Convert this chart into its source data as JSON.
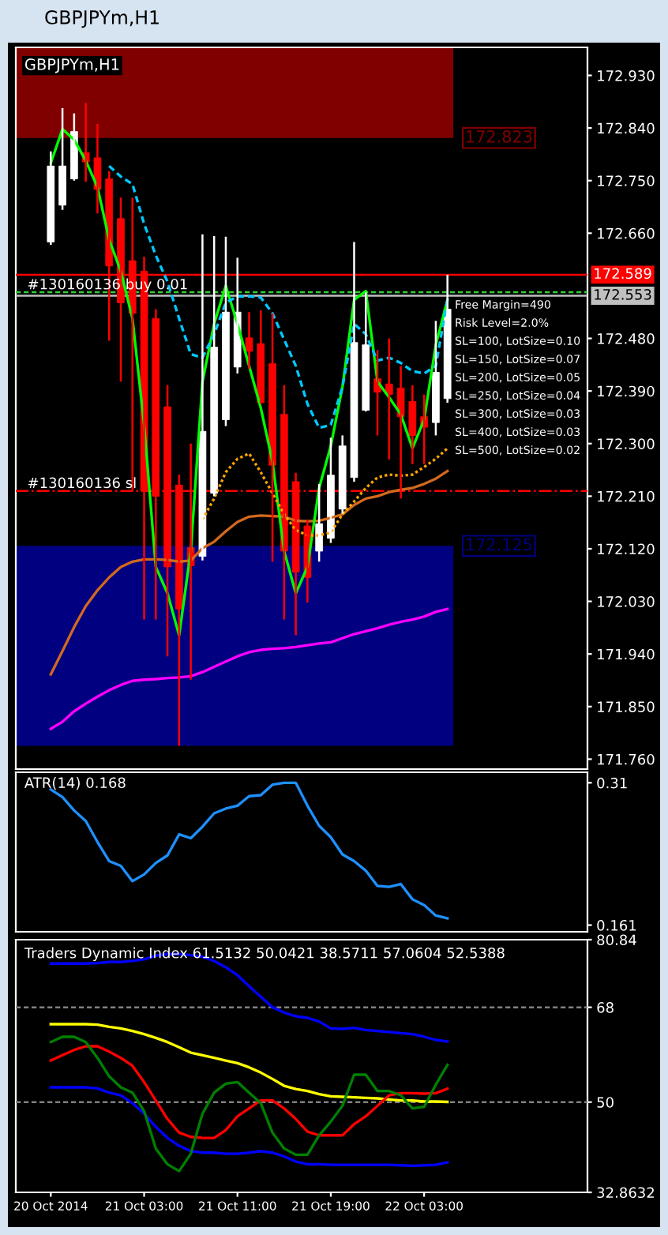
{
  "chart_data": [
    {
      "type": "candlestick",
      "title": "GBPJPYm,H1",
      "tick_labels": "y",
      "categories": [
        null,
        null,
        null,
        null,
        null,
        null,
        null,
        null,
        null,
        null,
        null,
        null,
        null,
        null,
        null,
        null,
        null,
        null,
        null,
        null,
        null,
        null,
        null,
        null,
        null,
        null,
        null,
        null,
        null,
        null,
        null,
        null,
        null,
        null,
        null
      ],
      "ohlc": [
        [
          172.645,
          172.8,
          172.64,
          172.775
        ],
        [
          172.708,
          172.874,
          172.7,
          172.775
        ],
        [
          172.753,
          172.865,
          172.75,
          172.834
        ],
        [
          172.798,
          172.883,
          172.748,
          172.782
        ],
        [
          172.789,
          172.847,
          172.694,
          172.735
        ],
        [
          172.753,
          172.766,
          172.476,
          172.604
        ],
        [
          172.685,
          172.721,
          172.406,
          172.541
        ],
        [
          172.613,
          172.721,
          172.219,
          172.523
        ],
        [
          172.595,
          172.62,
          171.999,
          172.219
        ],
        [
          172.514,
          172.53,
          171.999,
          172.21
        ],
        [
          172.363,
          172.4,
          171.936,
          172.089
        ],
        [
          172.229,
          172.247,
          171.783,
          172.017
        ],
        [
          172.122,
          172.3,
          171.896,
          172.091
        ],
        [
          172.107,
          172.658,
          172.1,
          172.321
        ],
        [
          172.215,
          172.655,
          172.21,
          172.465
        ],
        [
          172.341,
          172.654,
          172.33,
          172.525
        ],
        [
          172.431,
          172.618,
          172.42,
          172.525
        ],
        [
          172.481,
          172.525,
          172.428,
          172.458
        ],
        [
          172.471,
          172.528,
          172.368,
          172.37
        ],
        [
          172.437,
          172.523,
          172.098,
          172.263
        ],
        [
          172.35,
          172.4,
          171.999,
          172.116
        ],
        [
          172.235,
          172.25,
          171.972,
          172.08
        ],
        [
          172.159,
          172.17,
          172.028,
          172.071
        ],
        [
          172.116,
          172.231,
          172.098,
          172.163
        ],
        [
          172.138,
          172.31,
          172.13,
          172.246
        ],
        [
          172.188,
          172.314,
          172.18,
          172.296
        ],
        [
          172.242,
          172.645,
          172.235,
          172.473
        ],
        [
          172.357,
          172.559,
          172.355,
          172.469
        ],
        [
          172.411,
          172.46,
          172.314,
          172.388
        ],
        [
          172.402,
          172.48,
          172.273,
          172.384
        ],
        [
          172.395,
          172.433,
          172.206,
          172.346
        ],
        [
          172.372,
          172.4,
          172.265,
          172.314
        ],
        [
          172.346,
          172.384,
          172.265,
          172.328
        ],
        [
          172.336,
          172.51,
          172.314,
          172.422
        ],
        [
          172.377,
          172.589,
          172.37,
          172.53
        ]
      ],
      "colors": [
        "#ffffff",
        "#ffffff",
        "#ffffff",
        "#ff0000",
        "#ff0000",
        "#ff0000",
        "#ff0000",
        "#ff0000",
        "#ff0000",
        "#ff0000",
        "#ff0000",
        "#ff0000",
        "#ff0000",
        "#ffffff",
        "#ffffff",
        "#ffffff",
        "#ffffff",
        "#ff0000",
        "#ff0000",
        "#ff0000",
        "#ff0000",
        "#ff0000",
        "#ff0000",
        "#ffffff",
        "#ffffff",
        "#ffffff",
        "#ffffff",
        "#ffffff",
        "#ff0000",
        "#ff0000",
        "#ff0000",
        "#ff0000",
        "#ff0000",
        "#ffffff",
        "#ffffff"
      ],
      "series": [
        {
          "type": "line",
          "color": "#d2691e",
          "values": [
            171.905,
            171.945,
            171.986,
            172.022,
            172.049,
            172.071,
            172.089,
            172.098,
            172.102,
            172.102,
            172.101,
            172.098,
            172.1,
            172.121,
            172.132,
            172.15,
            172.166,
            172.175,
            172.177,
            172.176,
            172.175,
            172.168,
            172.167,
            172.168,
            172.173,
            172.179,
            172.195,
            172.206,
            172.21,
            172.217,
            172.221,
            172.224,
            172.231,
            172.24,
            172.253
          ]
        },
        {
          "type": "line",
          "color": "#ff00ff",
          "values": [
            171.812,
            171.824,
            171.842,
            171.855,
            171.867,
            171.878,
            171.887,
            171.894,
            171.896,
            171.897,
            171.899,
            171.9,
            171.902,
            171.909,
            171.918,
            171.927,
            171.936,
            171.943,
            171.947,
            171.949,
            171.95,
            171.952,
            171.955,
            171.958,
            171.96,
            171.967,
            171.974,
            171.979,
            171.984,
            171.99,
            171.995,
            171.999,
            172.004,
            172.012,
            172.017
          ]
        },
        {
          "type": "line",
          "color": "#00ff00",
          "values": [
            172.78,
            172.838,
            172.82,
            172.784,
            172.739,
            172.649,
            172.595,
            172.514,
            172.332,
            172.089,
            172.044,
            171.972,
            172.116,
            172.406,
            172.505,
            172.57,
            172.505,
            172.433,
            172.361,
            172.269,
            172.116,
            172.044,
            172.089,
            172.224,
            172.296,
            172.397,
            172.546,
            172.561,
            172.406,
            172.379,
            172.35,
            172.292,
            172.341,
            172.469,
            172.546
          ]
        },
        {
          "type": "line",
          "color": "#00c8ff",
          "line_style": "dashed",
          "values": [
            null,
            null,
            null,
            null,
            null,
            172.775,
            172.757,
            172.744,
            172.676,
            172.622,
            172.577,
            172.514,
            172.453,
            172.447,
            172.487,
            172.541,
            172.552,
            172.552,
            172.55,
            172.523,
            172.478,
            172.433,
            172.368,
            172.327,
            172.332,
            172.397,
            172.505,
            172.487,
            172.442,
            172.447,
            172.438,
            172.424,
            172.42,
            172.433,
            172.546
          ]
        },
        {
          "type": "line",
          "color": "#ffa500",
          "line_style": "dotted",
          "values": [
            null,
            null,
            null,
            null,
            null,
            null,
            null,
            null,
            null,
            null,
            null,
            null,
            null,
            172.17,
            172.206,
            172.251,
            172.274,
            172.283,
            172.251,
            172.215,
            172.179,
            172.152,
            172.143,
            172.143,
            172.148,
            172.179,
            172.201,
            172.224,
            172.242,
            172.247,
            172.245,
            172.247,
            172.26,
            172.274,
            172.292
          ]
        }
      ],
      "bands": [
        {
          "axis": "y",
          "from": 172.978,
          "to": 172.823,
          "label": "172.823",
          "color": "#800000"
        },
        {
          "axis": "y",
          "from": 171.783,
          "to": 172.125,
          "label": "172.125",
          "color": "#000080"
        }
      ],
      "ref_lines": [
        {
          "axis": "y",
          "value": 172.589,
          "label": "172.589",
          "color": "#ff0000",
          "line_style": "solid"
        },
        {
          "axis": "y",
          "value": 172.553,
          "label": "172.553",
          "color": "#c0c0c0",
          "line_style": "solid"
        },
        {
          "axis": "y",
          "value": 172.559,
          "label": "#130160136 buy 0.01",
          "color": "#32cd32",
          "line_style": "dashed"
        },
        {
          "axis": "y",
          "value": 172.219,
          "label": "#130160136 sl",
          "color": "#ff0000",
          "line_style": "dashdot"
        }
      ],
      "annotations": [
        "Free Margin=490",
        "Risk Level=2.0%",
        "SL=100, LotSize=0.10",
        "SL=150, LotSize=0.07",
        "SL=200, LotSize=0.05",
        "SL=250, LotSize=0.04",
        "SL=300, LotSize=0.03",
        "SL=400, LotSize=0.03",
        "SL=500, LotSize=0.02"
      ],
      "ylim": [
        171.743,
        172.978
      ],
      "yticks": [
        {
          "value": 172.93,
          "label": "172.930"
        },
        {
          "value": 172.84,
          "label": "172.840"
        },
        {
          "value": 172.75,
          "label": "172.750"
        },
        {
          "value": 172.66,
          "label": "172.660"
        },
        {
          "value": 172.48,
          "label": "172.480"
        },
        {
          "value": 172.39,
          "label": "172.390"
        },
        {
          "value": 172.3,
          "label": "172.300"
        },
        {
          "value": 172.21,
          "label": "172.210"
        },
        {
          "value": 172.12,
          "label": "172.120"
        },
        {
          "value": 172.03,
          "label": "172.030"
        },
        {
          "value": 171.94,
          "label": "171.940"
        },
        {
          "value": 171.85,
          "label": "171.850"
        },
        {
          "value": 171.76,
          "label": "171.760"
        }
      ]
    },
    {
      "type": "line",
      "title": "ATR(14) 0.168",
      "tick_labels": "y",
      "categories": [
        null,
        null,
        null,
        null,
        null,
        null,
        null,
        null,
        null,
        null,
        null,
        null,
        null,
        null,
        null,
        null,
        null,
        null,
        null,
        null,
        null,
        null,
        null,
        null,
        null,
        null,
        null,
        null,
        null,
        null,
        null,
        null,
        null,
        null,
        null
      ],
      "series": [
        {
          "color": "#1e90ff",
          "values": [
            0.303,
            0.295,
            0.281,
            0.27,
            0.248,
            0.228,
            0.223,
            0.207,
            0.214,
            0.226,
            0.234,
            0.256,
            0.252,
            0.264,
            0.278,
            0.283,
            0.286,
            0.296,
            0.297,
            0.308,
            0.31,
            0.31,
            0.286,
            0.265,
            0.253,
            0.235,
            0.228,
            0.218,
            0.202,
            0.201,
            0.204,
            0.188,
            0.182,
            0.171,
            0.168
          ]
        }
      ],
      "ylim": [
        0.154,
        0.321
      ],
      "yticks": [
        0.31,
        0.161
      ]
    },
    {
      "type": "line",
      "title": "Traders Dynamic Index 61.5132 50.0421 38.5711 57.0604 52.5388",
      "categories": [
        "20 Oct 2014",
        null,
        null,
        null,
        null,
        null,
        null,
        null,
        "21 Oct 03:00",
        null,
        null,
        null,
        null,
        null,
        null,
        null,
        "21 Oct 11:00",
        null,
        null,
        null,
        null,
        null,
        null,
        null,
        "21 Oct 19:00",
        null,
        null,
        null,
        null,
        null,
        null,
        null,
        "22 Oct 03:00",
        null,
        null
      ],
      "series": [
        {
          "color": "#0000ff",
          "values": [
            76.3,
            76.3,
            76.3,
            76.3,
            76.4,
            76.6,
            76.6,
            76.8,
            77.1,
            77.8,
            78.1,
            78.1,
            77.9,
            77.6,
            76.8,
            75.6,
            74.1,
            72.0,
            70.0,
            68.0,
            67.0,
            66.3,
            66.0,
            65.3,
            64.0,
            63.9,
            64.1,
            63.7,
            63.5,
            63.3,
            63.1,
            62.9,
            62.4,
            61.8,
            61.5132
          ]
        },
        {
          "color": "#0000ff",
          "values": [
            52.8,
            52.8,
            52.8,
            52.8,
            52.6,
            51.8,
            51.3,
            49.8,
            47.8,
            45.3,
            43.2,
            41.7,
            40.7,
            40.4,
            40.4,
            40.2,
            40.2,
            40.4,
            40.7,
            40.4,
            39.7,
            38.7,
            38.2,
            38.2,
            38.1,
            38.1,
            38.1,
            38.1,
            38.1,
            38.1,
            38.0,
            37.9,
            38.0,
            38.1,
            38.5711
          ]
        },
        {
          "color": "#ffff00",
          "values": [
            64.8,
            64.8,
            64.8,
            64.8,
            64.7,
            64.3,
            64.0,
            63.5,
            62.9,
            62.2,
            61.4,
            60.4,
            59.4,
            58.9,
            58.4,
            57.9,
            57.4,
            56.6,
            55.6,
            54.4,
            53.1,
            52.5,
            52.1,
            51.5,
            51.1,
            51.0,
            50.9,
            50.8,
            50.7,
            50.5,
            50.3,
            50.3,
            50.1,
            50.1,
            50.0421
          ]
        },
        {
          "color": "#ff0000",
          "values": [
            57.9,
            58.9,
            59.9,
            60.6,
            60.6,
            59.6,
            58.4,
            56.9,
            53.8,
            50.3,
            46.8,
            44.2,
            43.4,
            43.2,
            43.2,
            44.7,
            47.3,
            48.8,
            50.3,
            50.3,
            48.8,
            46.8,
            44.4,
            43.7,
            43.7,
            43.7,
            45.8,
            47.3,
            49.3,
            51.3,
            51.7,
            51.7,
            51.6,
            51.7,
            52.5388
          ]
        },
        {
          "color": "#008000",
          "values": [
            61.4,
            62.4,
            62.4,
            61.4,
            58.4,
            54.9,
            52.8,
            51.8,
            48.3,
            41.2,
            38.2,
            36.9,
            40.2,
            47.8,
            51.8,
            53.5,
            53.8,
            51.8,
            49.8,
            44.2,
            41.2,
            40.0,
            40.0,
            43.7,
            46.3,
            49.3,
            55.2,
            55.2,
            52.1,
            52.1,
            51.3,
            48.8,
            49.1,
            53.3,
            57.0604
          ]
        }
      ],
      "ref_lines": [
        {
          "axis": "y",
          "value": 68,
          "color": "#808080",
          "line_style": "dashed"
        },
        {
          "axis": "y",
          "value": 50,
          "color": "#808080",
          "line_style": "dashed"
        }
      ],
      "ylim": [
        32.8632,
        80.84
      ],
      "yticks": [
        80.84,
        68,
        50,
        32.8632
      ]
    }
  ]
}
